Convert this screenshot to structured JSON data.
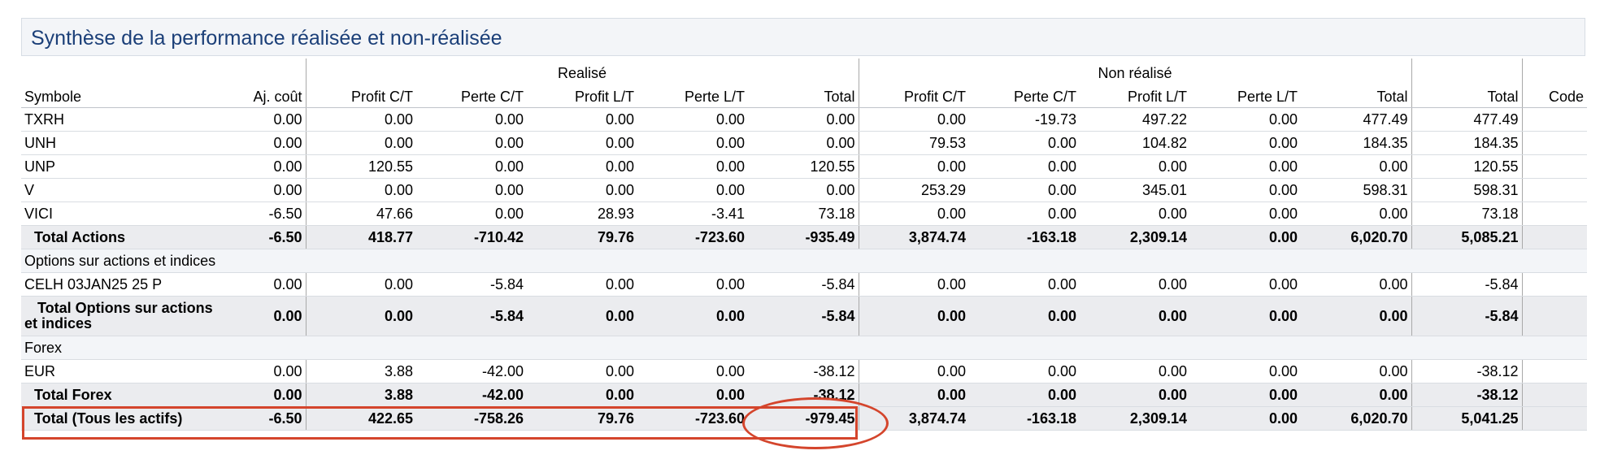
{
  "title": "Synthèse de la performance réalisée et non-réalisée",
  "groups": {
    "realized": "Realisé",
    "unrealized": "Non réalisé"
  },
  "columns": {
    "symbol": "Symbole",
    "adj_cost": "Aj. coût",
    "r_st_profit": "Profit C/T",
    "r_st_loss": "Perte C/T",
    "r_lt_profit": "Profit L/T",
    "r_lt_loss": "Perte L/T",
    "r_total": "Total",
    "u_st_profit": "Profit C/T",
    "u_st_loss": "Perte C/T",
    "u_lt_profit": "Profit L/T",
    "u_lt_loss": "Perte L/T",
    "u_total": "Total",
    "total": "Total",
    "code": "Code"
  },
  "rows": [
    {
      "type": "row",
      "symbol": "TXRH",
      "values": [
        "0.00",
        "0.00",
        "0.00",
        "0.00",
        "0.00",
        "0.00",
        "0.00",
        "-19.73",
        "497.22",
        "0.00",
        "477.49",
        "477.49"
      ]
    },
    {
      "type": "row",
      "symbol": "UNH",
      "values": [
        "0.00",
        "0.00",
        "0.00",
        "0.00",
        "0.00",
        "0.00",
        "79.53",
        "0.00",
        "104.82",
        "0.00",
        "184.35",
        "184.35"
      ]
    },
    {
      "type": "row",
      "symbol": "UNP",
      "values": [
        "0.00",
        "120.55",
        "0.00",
        "0.00",
        "0.00",
        "120.55",
        "0.00",
        "0.00",
        "0.00",
        "0.00",
        "0.00",
        "120.55"
      ]
    },
    {
      "type": "row",
      "symbol": "V",
      "values": [
        "0.00",
        "0.00",
        "0.00",
        "0.00",
        "0.00",
        "0.00",
        "253.29",
        "0.00",
        "345.01",
        "0.00",
        "598.31",
        "598.31"
      ]
    },
    {
      "type": "row",
      "symbol": "VICI",
      "values": [
        "-6.50",
        "47.66",
        "0.00",
        "28.93",
        "-3.41",
        "73.18",
        "0.00",
        "0.00",
        "0.00",
        "0.00",
        "0.00",
        "73.18"
      ]
    },
    {
      "type": "total",
      "symbol": "Total Actions",
      "values": [
        "-6.50",
        "418.77",
        "-710.42",
        "79.76",
        "-723.60",
        "-935.49",
        "3,874.74",
        "-163.18",
        "2,309.14",
        "0.00",
        "6,020.70",
        "5,085.21"
      ]
    },
    {
      "type": "section",
      "symbol": "Options sur actions et indices"
    },
    {
      "type": "row",
      "symbol": "CELH 03JAN25 25 P",
      "values": [
        "0.00",
        "0.00",
        "-5.84",
        "0.00",
        "0.00",
        "-5.84",
        "0.00",
        "0.00",
        "0.00",
        "0.00",
        "0.00",
        "-5.84"
      ]
    },
    {
      "type": "total_tall",
      "symbol": "Total Options sur actions et indices",
      "values": [
        "0.00",
        "0.00",
        "-5.84",
        "0.00",
        "0.00",
        "-5.84",
        "0.00",
        "0.00",
        "0.00",
        "0.00",
        "0.00",
        "-5.84"
      ]
    },
    {
      "type": "section",
      "symbol": "Forex"
    },
    {
      "type": "row",
      "symbol": "EUR",
      "values": [
        "0.00",
        "3.88",
        "-42.00",
        "0.00",
        "0.00",
        "-38.12",
        "0.00",
        "0.00",
        "0.00",
        "0.00",
        "0.00",
        "-38.12"
      ]
    },
    {
      "type": "total",
      "symbol": "Total Forex",
      "values": [
        "0.00",
        "3.88",
        "-42.00",
        "0.00",
        "0.00",
        "-38.12",
        "0.00",
        "0.00",
        "0.00",
        "0.00",
        "0.00",
        "-38.12"
      ]
    },
    {
      "type": "total",
      "symbol": "Total (Tous les actifs)",
      "values": [
        "-6.50",
        "422.65",
        "-758.26",
        "79.76",
        "-723.60",
        "-979.45",
        "3,874.74",
        "-163.18",
        "2,309.14",
        "0.00",
        "6,020.70",
        "5,041.25"
      ]
    }
  ],
  "colors": {
    "title_text": "#1b3f78",
    "annotation": "#d4452c",
    "total_bg": "#ebecef",
    "section_bg": "#f3f5f8"
  }
}
